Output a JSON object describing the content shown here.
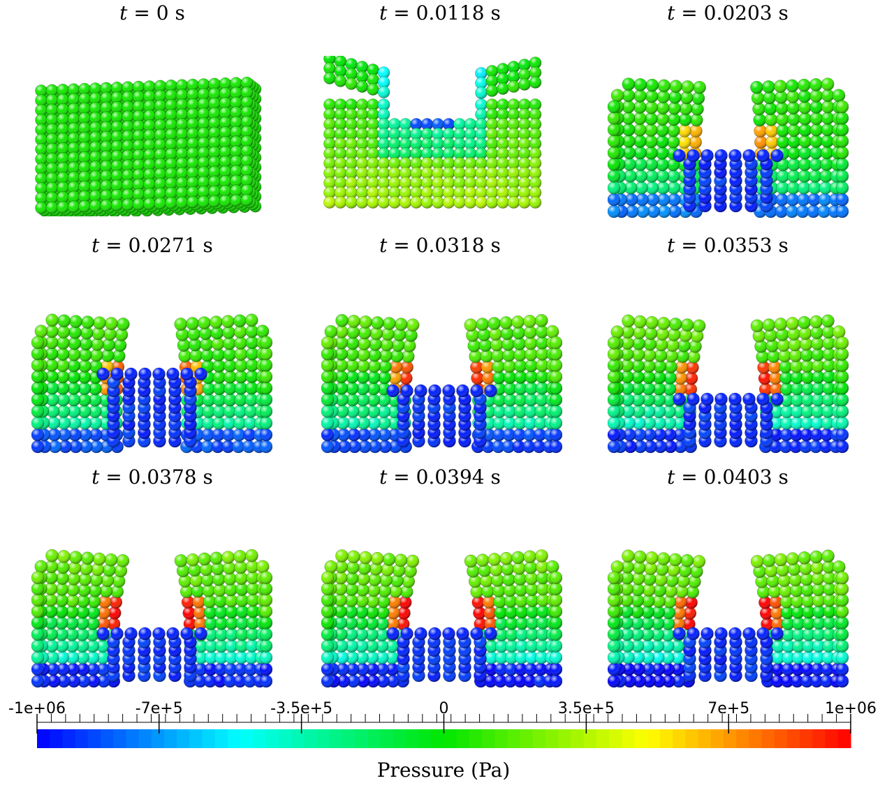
{
  "panels": [
    {
      "label_var": "t",
      "label_value": "0",
      "unit": "s"
    },
    {
      "label_var": "t",
      "label_value": "0.0118",
      "unit": "s"
    },
    {
      "label_var": "t",
      "label_value": "0.0203",
      "unit": "s"
    },
    {
      "label_var": "t",
      "label_value": "0.0271",
      "unit": "s"
    },
    {
      "label_var": "t",
      "label_value": "0.0318",
      "unit": "s"
    },
    {
      "label_var": "t",
      "label_value": "0.0353",
      "unit": "s"
    },
    {
      "label_var": "t",
      "label_value": "0.0378",
      "unit": "s"
    },
    {
      "label_var": "t",
      "label_value": "0.0394",
      "unit": "s"
    },
    {
      "label_var": "t",
      "label_value": "0.0403",
      "unit": "s"
    }
  ],
  "colorbar": {
    "title": "Pressure (Pa)",
    "range": [
      -1000000,
      1000000
    ],
    "tick_labels": [
      "-1e+06",
      "-7e+5",
      "-3.5e+5",
      "0",
      "3.5e+5",
      "7e+5",
      "1e+06"
    ],
    "tick_values": [
      -1000000,
      -700000,
      -350000,
      0,
      350000,
      700000,
      1000000
    ],
    "colors": [
      "#0000ff",
      "#00ffff",
      "#00ff00",
      "#ffff00",
      "#ff0000"
    ]
  }
}
